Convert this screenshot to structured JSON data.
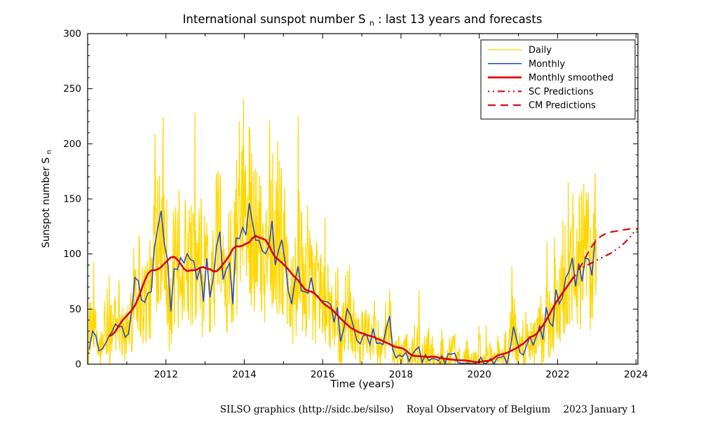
{
  "chart_data": {
    "type": "line",
    "title": {
      "prefix": "International sunspot number S",
      "sub": "n",
      "suffix": " : last 13 years and forecasts"
    },
    "x_axis": {
      "label": "Time (years)",
      "min": 2010,
      "max": 2024.05,
      "major_ticks": [
        2012,
        2014,
        2016,
        2018,
        2020,
        2022,
        2024
      ],
      "minor_step_years": 1
    },
    "y_axis": {
      "label_prefix": "Sunspot number S",
      "label_sub": "n",
      "min": 0,
      "max": 300,
      "major_step": 50,
      "minor_step": 10
    },
    "grid": false,
    "legend_position": "top-right",
    "colors": {
      "daily": "#FFD700",
      "monthly": "#2244cc",
      "smoothed": "#dc0000",
      "predictions": "#dc0000",
      "axis": "#000000",
      "background": "#ffffff"
    },
    "legend": [
      {
        "label": "Daily",
        "color": "#FFD700",
        "width": 1.2,
        "dash": ""
      },
      {
        "label": "Monthly",
        "color": "#2244cc",
        "width": 1.5,
        "dash": ""
      },
      {
        "label": "Monthly smoothed",
        "color": "#dc0000",
        "width": 2.6,
        "dash": ""
      },
      {
        "label": "SC Predictions",
        "color": "#dc0000",
        "width": 2.1,
        "dash": "2 5 2 5 10 5"
      },
      {
        "label": "CM Predictions",
        "color": "#dc0000",
        "width": 2.1,
        "dash": "11 7"
      }
    ],
    "monthly": {
      "name": "Monthly",
      "start_year": 2010,
      "values": [
        13.2,
        29.9,
        25.9,
        12.1,
        13.8,
        18.8,
        25.2,
        29.6,
        36.4,
        33.6,
        34.4,
        24.5,
        27.3,
        48.3,
        78.6,
        75.7,
        58.3,
        56.1,
        64.5,
        65.8,
        106.4,
        123.6,
        139.2,
        109.3,
        94.4,
        47.9,
        86.6,
        85.9,
        96.5,
        92.0,
        100.1,
        94.8,
        93.7,
        76.5,
        87.6,
        56.8,
        96.1,
        60.9,
        78.3,
        107.3,
        120.2,
        76.7,
        86.2,
        91.8,
        54.5,
        114.4,
        113.9,
        124.2,
        117.0,
        146.1,
        128.7,
        112.5,
        112.5,
        102.9,
        100.2,
        106.9,
        130.0,
        90.0,
        103.6,
        112.9,
        93.0,
        66.7,
        54.5,
        75.3,
        88.8,
        66.5,
        65.8,
        64.4,
        78.6,
        63.6,
        62.2,
        58.0,
        57.0,
        56.4,
        54.1,
        37.9,
        51.5,
        20.5,
        32.4,
        50.2,
        44.6,
        33.4,
        21.4,
        18.5,
        26.1,
        26.4,
        17.7,
        32.3,
        18.9,
        19.2,
        17.8,
        32.6,
        43.7,
        13.2,
        5.7,
        8.2,
        6.8,
        10.7,
        2.5,
        8.9,
        13.1,
        15.6,
        1.6,
        8.7,
        3.3,
        4.9,
        4.9,
        3.1,
        7.7,
        0.8,
        9.4,
        9.1,
        9.9,
        1.2,
        0.9,
        0.5,
        1.1,
        0.4,
        0.5,
        1.5,
        6.2,
        0.2,
        1.5,
        5.2,
        0.2,
        5.8,
        6.1,
        7.5,
        0.6,
        14.4,
        34.0,
        21.8,
        10.4,
        8.4,
        17.2,
        24.5,
        17.3,
        25.3,
        34.6,
        22.2,
        51.6,
        37.9,
        34.5,
        67.7,
        54.7,
        60.8,
        78.5,
        84.1,
        96.5,
        70.5,
        91.4,
        75.0,
        96.3,
        95.3,
        80.5,
        113.1
      ]
    },
    "smoothed": {
      "name": "Monthly smoothed",
      "method": "13-month running mean of monthly values with half-weight end points"
    },
    "daily": {
      "name": "Daily",
      "method": "daily scatter around monthly means",
      "points_per_month": 8,
      "noise_base": 14,
      "noise_factor": 0.5,
      "spike_chance": 0.12,
      "spike_base": 25,
      "spike_factor": 0.7,
      "seed": 12345
    },
    "predictions": {
      "sc": {
        "name": "SC Predictions",
        "start_x": 2022.54,
        "step_years": 0.08333,
        "values": [
          86,
          87.5,
          89,
          90.5,
          92,
          93.5,
          95,
          96.5,
          98,
          99.5,
          101,
          103,
          105,
          107.5,
          110,
          113,
          116.5,
          120,
          123.5
        ]
      },
      "cm": {
        "name": "CM Predictions",
        "start_x": 2022.54,
        "step_years": 0.08333,
        "values": [
          86,
          91,
          96.5,
          102,
          107,
          111,
          114,
          116.5,
          118,
          119,
          120,
          120.5,
          121,
          121.5,
          122,
          122.5,
          123,
          124
        ]
      }
    }
  },
  "footer": {
    "credit": "SILSO graphics (http://sidc.be/silso)",
    "organization": "Royal Observatory of Belgium",
    "date": "2023 January 1"
  }
}
